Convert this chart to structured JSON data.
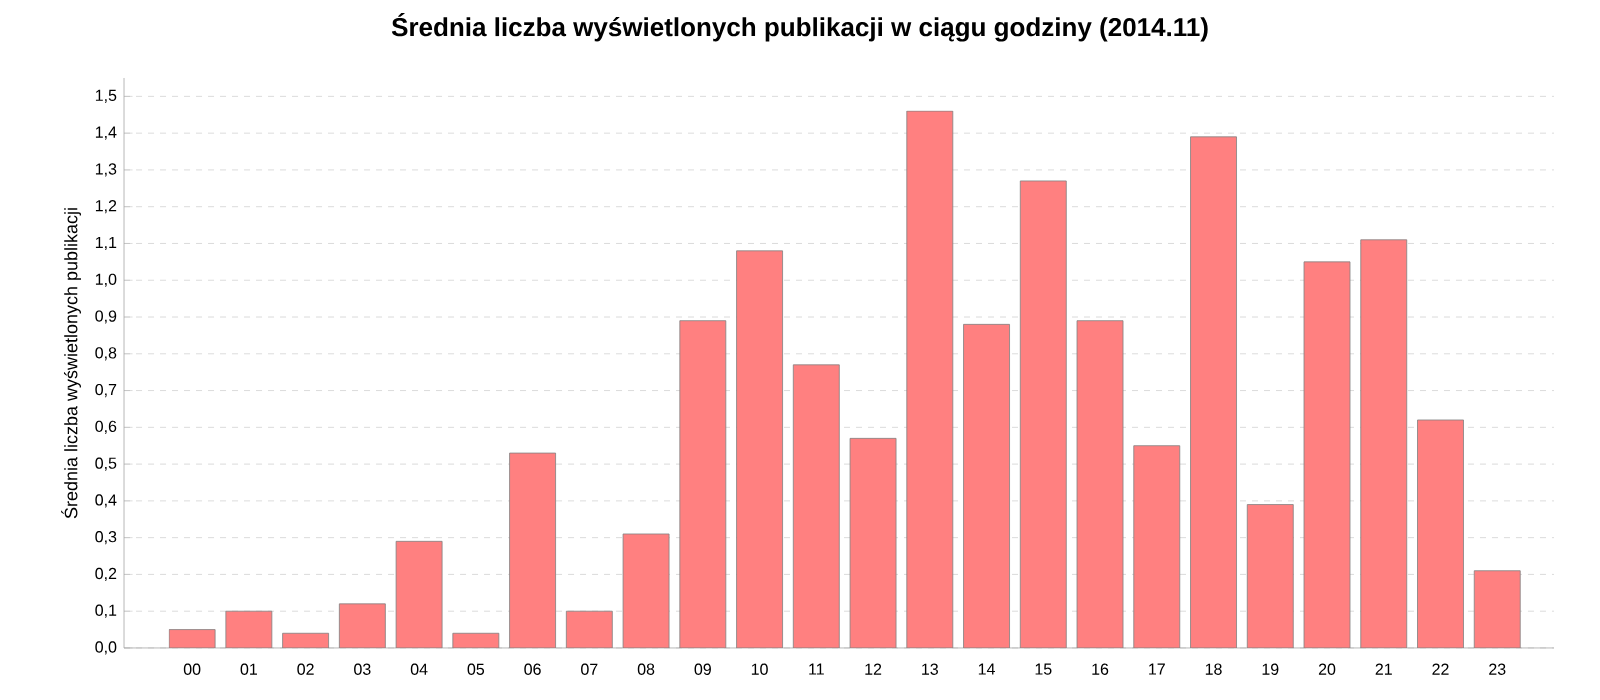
{
  "chart_data": {
    "type": "bar",
    "title": "Średnia liczba wyświetlonych publikacji w ciągu godziny (2014.11)",
    "ylabel": "Średnia liczba wyświetlonych publikacji",
    "categories": [
      "00",
      "01",
      "02",
      "03",
      "04",
      "05",
      "06",
      "07",
      "08",
      "09",
      "10",
      "11",
      "12",
      "13",
      "14",
      "15",
      "16",
      "17",
      "18",
      "19",
      "20",
      "21",
      "22",
      "23"
    ],
    "values": [
      0.05,
      0.1,
      0.04,
      0.12,
      0.29,
      0.04,
      0.53,
      0.1,
      0.31,
      0.89,
      1.08,
      0.77,
      0.57,
      1.46,
      0.88,
      1.27,
      0.89,
      0.55,
      1.39,
      0.39,
      1.05,
      1.11,
      0.62,
      0.21
    ],
    "color": "#ff8080",
    "ylim": [
      0,
      1.55
    ],
    "yticks": [
      {
        "value": 0,
        "label": "0,0"
      },
      {
        "value": 0.1,
        "label": "0,1"
      },
      {
        "value": 0.2,
        "label": "0,2"
      },
      {
        "value": 0.3,
        "label": "0,3"
      },
      {
        "value": 0.4,
        "label": "0,4"
      },
      {
        "value": 0.5,
        "label": "0,5"
      },
      {
        "value": 0.6,
        "label": "0,6"
      },
      {
        "value": 0.7,
        "label": "0,7"
      },
      {
        "value": 0.8,
        "label": "0,8"
      },
      {
        "value": 0.9,
        "label": "0,9"
      },
      {
        "value": 1.0,
        "label": "1,0"
      },
      {
        "value": 1.1,
        "label": "1,1"
      },
      {
        "value": 1.2,
        "label": "1,2"
      },
      {
        "value": 1.3,
        "label": "1,3"
      },
      {
        "value": 1.4,
        "label": "1,4"
      },
      {
        "value": 1.5,
        "label": "1,5"
      }
    ],
    "grid": "y"
  }
}
